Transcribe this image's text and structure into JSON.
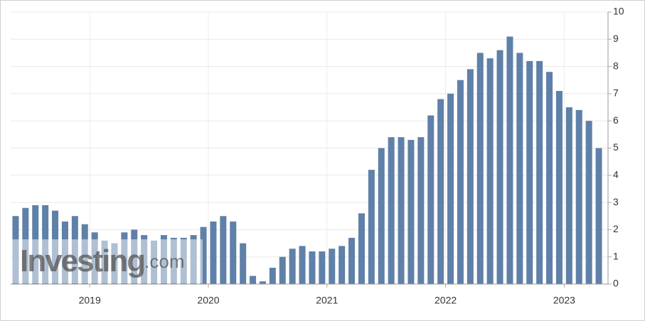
{
  "chart_data": {
    "type": "bar",
    "categories": [
      null,
      null,
      null,
      null,
      null,
      null,
      null,
      null,
      "2019",
      null,
      null,
      null,
      null,
      null,
      null,
      null,
      null,
      null,
      null,
      null,
      "2020",
      null,
      null,
      null,
      null,
      null,
      null,
      null,
      null,
      null,
      null,
      null,
      "2021",
      null,
      null,
      null,
      null,
      null,
      null,
      null,
      null,
      null,
      null,
      null,
      "2022",
      null,
      null,
      null,
      null,
      null,
      null,
      null,
      null,
      null,
      null,
      null,
      "2023",
      null,
      null,
      null
    ],
    "values": [
      2.5,
      2.8,
      2.9,
      2.9,
      2.7,
      2.3,
      2.5,
      2.2,
      1.9,
      1.6,
      1.5,
      1.9,
      2.0,
      1.8,
      1.6,
      1.8,
      1.7,
      1.7,
      1.8,
      2.1,
      2.3,
      2.5,
      2.3,
      1.5,
      0.3,
      0.1,
      0.6,
      1.0,
      1.3,
      1.4,
      1.2,
      1.2,
      1.3,
      1.4,
      1.7,
      2.6,
      4.2,
      5.0,
      5.4,
      5.4,
      5.3,
      5.4,
      6.2,
      6.8,
      7.0,
      7.5,
      7.9,
      8.5,
      8.3,
      8.6,
      9.1,
      8.5,
      8.2,
      8.2,
      7.8,
      7.1,
      6.5,
      6.4,
      6.0,
      5.0
    ],
    "color": "#5f80a8",
    "ylim": [
      0,
      10
    ],
    "yticks": [
      0,
      1,
      2,
      3,
      4,
      5,
      6,
      7,
      8,
      9,
      10
    ],
    "grid": true,
    "watermark": {
      "brand": "Investing",
      "suffix": ".com"
    }
  }
}
